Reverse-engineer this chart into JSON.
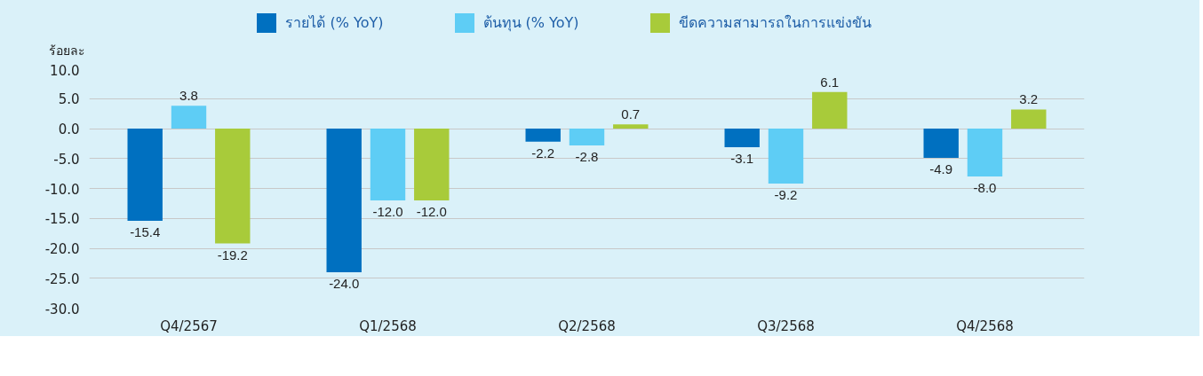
{
  "chart_data": {
    "type": "bar",
    "ylabel": "ร้อยละ",
    "categories": [
      "Q4/2567",
      "Q1/2568",
      "Q2/2568",
      "Q3/2568",
      "Q4/2568"
    ],
    "series": [
      {
        "name": "รายได้ (% YoY)",
        "color": "#0070c0",
        "values": [
          -15.4,
          -24.0,
          -2.2,
          -3.1,
          -4.9
        ],
        "value_labels": [
          "-15.4",
          "-24.0",
          "-2.2",
          "-3.1",
          "-4.9"
        ]
      },
      {
        "name": "ต้นทุน (% YoY)",
        "color": "#5ecdf5",
        "values": [
          3.8,
          -12.0,
          -2.8,
          -9.2,
          -8.0
        ],
        "value_labels": [
          "3.8",
          "-12.0",
          "-2.8",
          "-9.2",
          "-8.0"
        ]
      },
      {
        "name": "ขีดความสามารถในการแข่งขัน",
        "color": "#a8cb3a",
        "values": [
          -19.2,
          -12.0,
          0.7,
          6.1,
          3.2
        ],
        "value_labels": [
          "-19.2",
          "-12.0",
          "0.7",
          "6.1",
          "3.2"
        ]
      }
    ],
    "ylim": [
      -30.0,
      10.0
    ],
    "yticks": [
      {
        "value": 10,
        "label": "10.0"
      },
      {
        "value": 5,
        "label": "5.0"
      },
      {
        "value": 0,
        "label": "0.0"
      },
      {
        "value": -5,
        "label": "-5.0"
      },
      {
        "value": -10,
        "label": "-10.0"
      },
      {
        "value": -15,
        "label": "-15.0"
      },
      {
        "value": -20,
        "label": "-20.0"
      },
      {
        "value": -25,
        "label": "-25.0"
      },
      {
        "value": -30,
        "label": "-30.0"
      }
    ],
    "grid": "y",
    "legend": "top"
  }
}
